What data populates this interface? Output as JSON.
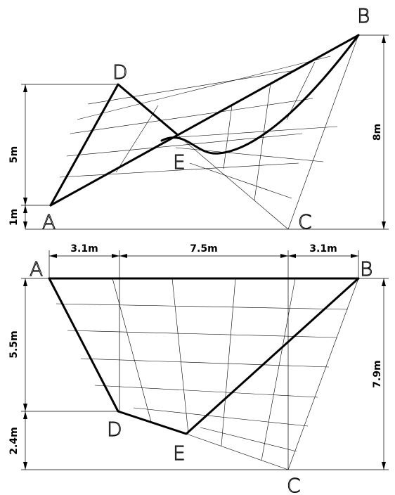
{
  "points": {
    "a": "A",
    "b": "B",
    "c": "C",
    "d": "D",
    "e": "E"
  },
  "elevation": {
    "dims": {
      "d_height": "5m",
      "a_height": "1m",
      "b_height": "8m"
    }
  },
  "plan": {
    "dims": {
      "left": "3.1m",
      "middle": "7.5m",
      "right": "3.1m",
      "a_to_d": "5.5m",
      "d_to_c": "2.4m",
      "b_to_c": "7.9m"
    }
  }
}
